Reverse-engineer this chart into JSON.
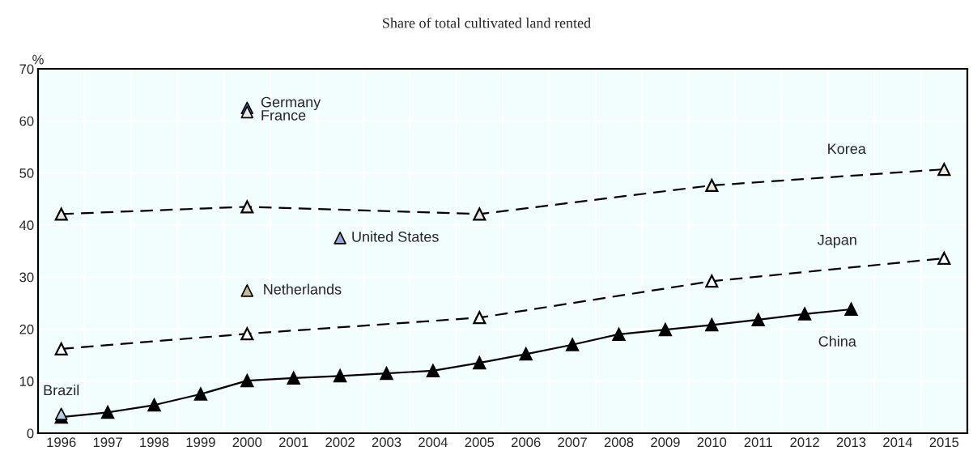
{
  "chart_data": {
    "type": "line",
    "title": "Share of total cultivated land rented",
    "ylabel": "%",
    "categories": [
      "1996",
      "1997",
      "1998",
      "1999",
      "2000",
      "2001",
      "2002",
      "2003",
      "2004",
      "2005",
      "2006",
      "2007",
      "2008",
      "2009",
      "2010",
      "2011",
      "2012",
      "2013",
      "2014",
      "2015"
    ],
    "ylim": [
      0,
      70
    ],
    "yticks": [
      0,
      10,
      20,
      30,
      40,
      50,
      60,
      70
    ],
    "grid": true,
    "marker": "triangle",
    "legend": false,
    "series": [
      {
        "name": "Korea",
        "line_style": "dashed",
        "color": "#ece8e0",
        "values": [
          42.1,
          null,
          null,
          null,
          43.5,
          null,
          null,
          null,
          null,
          42.1,
          null,
          null,
          null,
          null,
          47.6,
          null,
          null,
          null,
          null,
          50.7
        ]
      },
      {
        "name": "Japan",
        "line_style": "dashed",
        "color": "#ffffff",
        "values": [
          16.2,
          null,
          null,
          null,
          19.1,
          null,
          null,
          null,
          null,
          22.2,
          null,
          null,
          null,
          null,
          29.2,
          null,
          null,
          null,
          null,
          33.6
        ]
      },
      {
        "name": "China",
        "line_style": "solid",
        "color": "#000000",
        "values": [
          3.1,
          4.0,
          5.4,
          7.5,
          10.1,
          10.6,
          11.0,
          11.5,
          12.0,
          13.5,
          15.2,
          17.0,
          19.0,
          19.9,
          20.8,
          21.8,
          22.9,
          23.8,
          null,
          null
        ]
      },
      {
        "name": "Germany",
        "type": "scatter",
        "color": "#4f7fc0",
        "values": [
          null,
          null,
          null,
          null,
          62.5,
          null,
          null,
          null,
          null,
          null,
          null,
          null,
          null,
          null,
          null,
          null,
          null,
          null,
          null,
          null
        ]
      },
      {
        "name": "France",
        "type": "scatter",
        "color": "#ece8e0",
        "values": [
          null,
          null,
          null,
          null,
          61.7,
          null,
          null,
          null,
          null,
          null,
          null,
          null,
          null,
          null,
          null,
          null,
          null,
          null,
          null,
          null
        ]
      },
      {
        "name": "United States",
        "type": "scatter",
        "color": "#8ea9d8",
        "values": [
          null,
          null,
          null,
          null,
          null,
          null,
          37.5,
          null,
          null,
          null,
          null,
          null,
          null,
          null,
          null,
          null,
          null,
          null,
          null,
          null
        ]
      },
      {
        "name": "Netherlands",
        "type": "scatter",
        "color": "#c8b99a",
        "values": [
          null,
          null,
          null,
          null,
          27.4,
          null,
          null,
          null,
          null,
          null,
          null,
          null,
          null,
          null,
          null,
          null,
          null,
          null,
          null,
          null
        ]
      },
      {
        "name": "Brazil",
        "type": "scatter",
        "color": "#b8cce8",
        "values": [
          3.7,
          null,
          null,
          null,
          null,
          null,
          null,
          null,
          null,
          null,
          null,
          null,
          null,
          null,
          null,
          null,
          null,
          null,
          null,
          null
        ]
      }
    ]
  }
}
